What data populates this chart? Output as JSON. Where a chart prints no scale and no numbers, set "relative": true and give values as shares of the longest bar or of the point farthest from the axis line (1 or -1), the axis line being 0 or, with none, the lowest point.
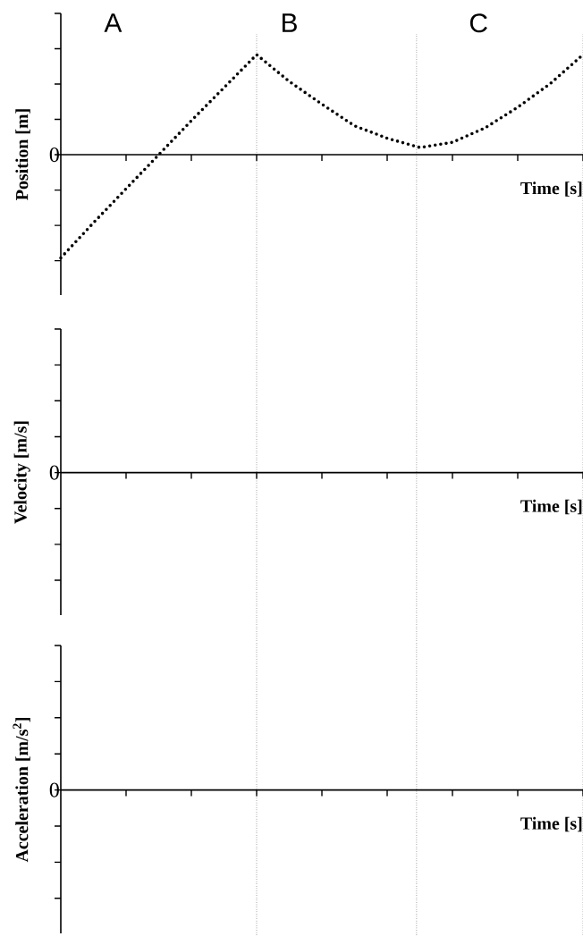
{
  "chart_data": [
    {
      "type": "line",
      "relative": true,
      "xlabel": "Time [s]",
      "ylabel": "Position [m]",
      "annotations": [
        "0",
        "A",
        "B",
        "C"
      ],
      "line_style": "dotted",
      "marker": "none",
      "color": "#000000",
      "categories": [
        null,
        null,
        null,
        null,
        null,
        null,
        null,
        null,
        null,
        null,
        null,
        null,
        null,
        null,
        null,
        null,
        null
      ],
      "values": [
        -1,
        -0.66,
        -0.33,
        0,
        0.33,
        0.65,
        0.97,
        0.71,
        0.49,
        0.28,
        0.16,
        0.07,
        0.12,
        0.26,
        0.46,
        0.69,
        0.97
      ]
    },
    {
      "type": "other",
      "xlabel": "Time [s]",
      "ylabel": "Velocity [m/s]",
      "annotations": [
        "0"
      ]
    },
    {
      "type": "other",
      "xlabel": "Time [s]",
      "ylabel": "Acceleration [m/s$^{2}$]",
      "annotations": [
        "0"
      ]
    }
  ]
}
